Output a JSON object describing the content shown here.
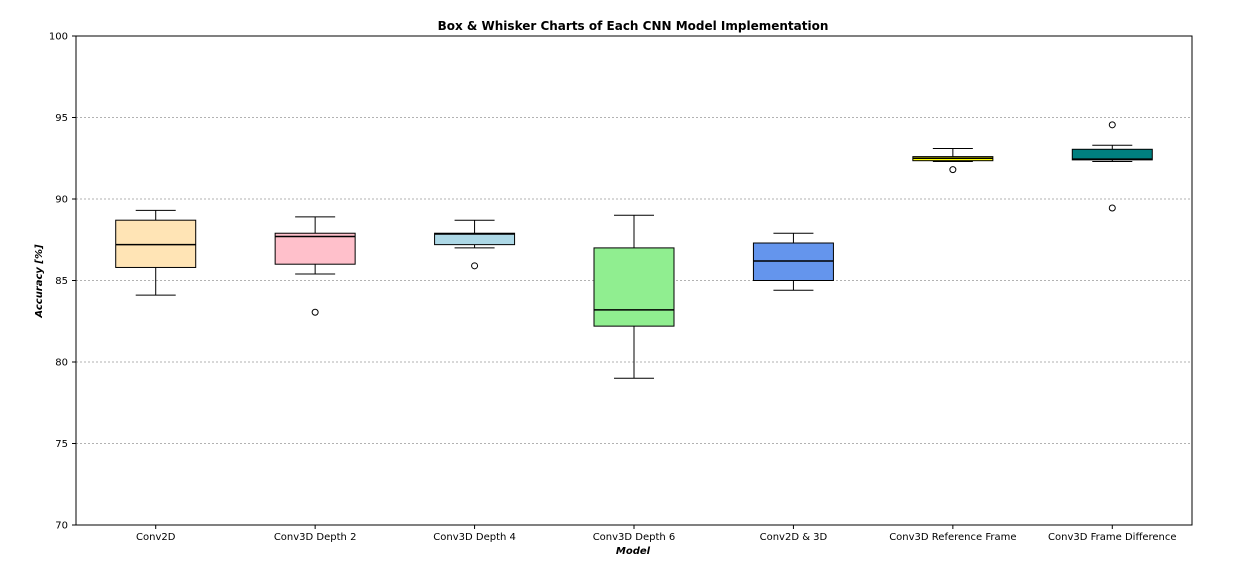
{
  "chart_data": {
    "type": "box",
    "title": "Box & Whisker Charts of Each CNN Model Implementation",
    "xlabel": "Model",
    "ylabel": "Accuracy [%]",
    "ylim": [
      70,
      100
    ],
    "yticks": [
      70,
      75,
      80,
      85,
      90,
      95,
      100
    ],
    "grid": "horizontal dashed",
    "categories": [
      "Conv2D",
      "Conv3D Depth 2",
      "Conv3D Depth 4",
      "Conv3D Depth 6",
      "Conv2D & 3D",
      "Conv3D Reference Frame",
      "Conv3D Frame Difference"
    ],
    "boxes": [
      {
        "whislo": 84.1,
        "q1": 85.8,
        "med": 87.2,
        "q3": 88.7,
        "whishi": 89.3,
        "fliers": [],
        "color": "#ffe4b5"
      },
      {
        "whislo": 85.4,
        "q1": 86.0,
        "med": 87.7,
        "q3": 87.9,
        "whishi": 88.9,
        "fliers": [
          83.05
        ],
        "color": "#ffc0cb"
      },
      {
        "whislo": 87.0,
        "q1": 87.2,
        "med": 87.85,
        "q3": 87.9,
        "whishi": 88.7,
        "fliers": [
          85.9
        ],
        "color": "#add8e6"
      },
      {
        "whislo": 79.0,
        "q1": 82.2,
        "med": 83.2,
        "q3": 87.0,
        "whishi": 89.0,
        "fliers": [],
        "color": "#90ee90"
      },
      {
        "whislo": 84.4,
        "q1": 85.0,
        "med": 86.2,
        "q3": 87.3,
        "whishi": 87.9,
        "fliers": [],
        "color": "#6495ed"
      },
      {
        "whislo": 92.3,
        "q1": 92.35,
        "med": 92.5,
        "q3": 92.6,
        "whishi": 93.1,
        "fliers": [
          91.8
        ],
        "color": "#ffff00"
      },
      {
        "whislo": 92.3,
        "q1": 92.4,
        "med": 92.45,
        "q3": 93.05,
        "whishi": 93.3,
        "fliers": [
          94.55,
          89.45
        ],
        "color": "#008080"
      }
    ]
  }
}
